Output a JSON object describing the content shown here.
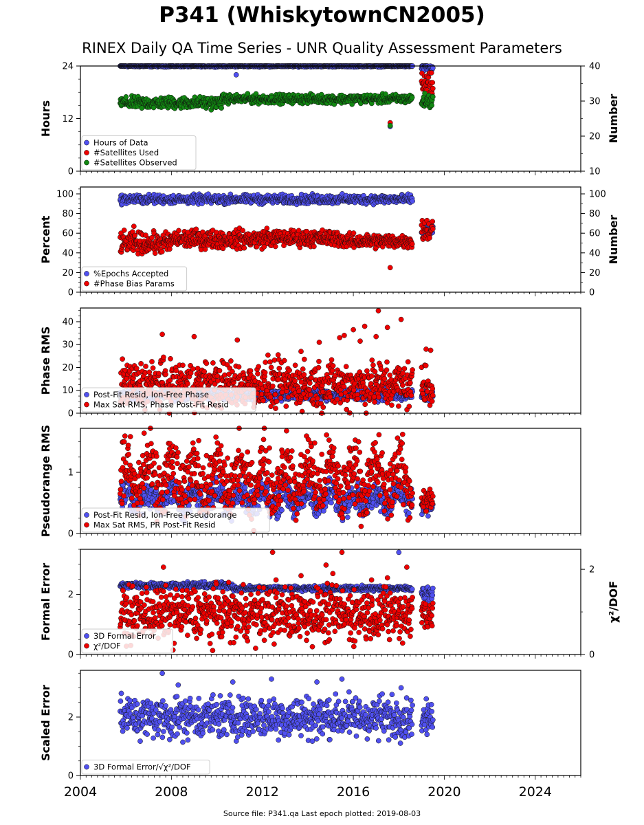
{
  "title": "P341 (WhiskytownCN2005)",
  "subtitle": "RINEX Daily QA Time Series - UNR Quality Assessment Parameters",
  "footer": "Source file: P341.qa Last epoch plotted: 2019-08-03",
  "colors": {
    "blue": "#5050f0",
    "red": "#ee0000",
    "green": "#118811",
    "edge": "#111111"
  },
  "chart_data": [
    {
      "type": "scatter",
      "ylabel": "Hours",
      "y2label": "Number",
      "ylim": [
        0,
        24
      ],
      "yticks": [
        0,
        12,
        24
      ],
      "y2lim": [
        10,
        40
      ],
      "y2ticks": [
        10,
        20,
        30,
        40
      ],
      "legend": "lower-left",
      "series": [
        {
          "name": "Hours of Data",
          "color": "blue",
          "axis": "left",
          "segments": [
            {
              "x0": 2005.75,
              "x1": 2018.6,
              "base": 24.0,
              "noise": 0.1
            },
            {
              "x0": 2019.0,
              "x1": 2019.5,
              "base": 23.6,
              "noise": 0.4
            }
          ],
          "extra": [
            [
              2010.85,
              22.0
            ],
            [
              2017.62,
              10.2
            ]
          ]
        },
        {
          "name": "#Satellites Used",
          "color": "red",
          "axis": "right",
          "segments": [
            {
              "x0": 2019.0,
              "x1": 2019.5,
              "base": 34.5,
              "noise": 1.6
            }
          ],
          "extra": [
            [
              2017.62,
              23.8
            ],
            [
              2009.7,
              30.0
            ]
          ]
        },
        {
          "name": "#Satellites Observed",
          "color": "green",
          "axis": "right",
          "segments": [
            {
              "x0": 2005.75,
              "x1": 2010.2,
              "base": 29.5,
              "noise": 0.8
            },
            {
              "x0": 2010.2,
              "x1": 2018.6,
              "base": 30.6,
              "noise": 0.6
            },
            {
              "x0": 2019.0,
              "x1": 2019.5,
              "base": 30.0,
              "noise": 1.0
            }
          ],
          "extra": [
            [
              2017.62,
              23.0
            ],
            [
              2006.7,
              28.0
            ]
          ]
        }
      ]
    },
    {
      "type": "scatter",
      "ylabel": "Percent",
      "y2label": "Number",
      "ylim": [
        0,
        107
      ],
      "yticks": [
        0,
        20,
        40,
        60,
        80,
        100
      ],
      "y2lim": [
        0,
        107
      ],
      "y2ticks": [
        0,
        20,
        40,
        60,
        80,
        100
      ],
      "legend": "lower-left",
      "series": [
        {
          "name": "%Epochs Accepted",
          "color": "blue",
          "axis": "left",
          "segments": [
            {
              "x0": 2005.75,
              "x1": 2018.6,
              "base": 94.5,
              "noise": 2.2
            },
            {
              "x0": 2019.0,
              "x1": 2019.5,
              "base": 64.0,
              "noise": 4.0
            }
          ],
          "extra": []
        },
        {
          "name": "#Phase Bias Params",
          "color": "red",
          "axis": "right",
          "segments": [
            {
              "x0": 2005.75,
              "x1": 2008.0,
              "base": 50.0,
              "noise": 5.0
            },
            {
              "x0": 2008.0,
              "x1": 2012.0,
              "base": 54.0,
              "noise": 4.5
            },
            {
              "x0": 2012.0,
              "x1": 2015.5,
              "base": 55.0,
              "noise": 4.0
            },
            {
              "x0": 2015.5,
              "x1": 2018.6,
              "base": 52.0,
              "noise": 3.5
            },
            {
              "x0": 2019.0,
              "x1": 2019.5,
              "base": 63.0,
              "noise": 6.0
            }
          ],
          "extra": [
            [
              2017.62,
              25.0
            ],
            [
              2006.35,
              67.0
            ],
            [
              2012.2,
              65.0
            ]
          ]
        }
      ]
    },
    {
      "type": "scatter",
      "ylabel": "Phase RMS",
      "ylim": [
        0,
        46
      ],
      "yticks": [
        0,
        10,
        20,
        30,
        40
      ],
      "legend": "lower-left",
      "series": [
        {
          "name": "Post-Fit Resid, Ion-Free Phase",
          "color": "blue",
          "axis": "left",
          "segments": [
            {
              "x0": 2005.75,
              "x1": 2018.6,
              "base": 8.0,
              "noise": 1.2
            },
            {
              "x0": 2019.0,
              "x1": 2019.5,
              "base": 7.5,
              "noise": 1.0
            }
          ],
          "extra": []
        },
        {
          "name": "Max Sat RMS, Phase Post-Fit Resid",
          "color": "red",
          "axis": "left",
          "segments": [
            {
              "x0": 2005.75,
              "x1": 2018.6,
              "base": 12.5,
              "noise": 5.0
            },
            {
              "x0": 2019.0,
              "x1": 2019.5,
              "base": 12.0,
              "noise": 5.0
            }
          ],
          "extra": [
            [
              2007.6,
              34.5
            ],
            [
              2009.0,
              33.5
            ],
            [
              2010.9,
              32.0
            ],
            [
              2014.5,
              31.0
            ],
            [
              2015.4,
              33.0
            ],
            [
              2015.6,
              34.0
            ],
            [
              2016.0,
              36.5
            ],
            [
              2016.5,
              38.0
            ],
            [
              2017.1,
              44.8
            ],
            [
              2017.5,
              37.5
            ],
            [
              2018.1,
              41.0
            ],
            [
              2016.3,
              31.5
            ],
            [
              2019.2,
              28.0
            ],
            [
              2019.4,
              27.5
            ],
            [
              2017.0,
              33.5
            ],
            [
              2013.7,
              27.0
            ]
          ]
        }
      ]
    },
    {
      "type": "scatter",
      "ylabel": "Pseudorange RMS",
      "ylim": [
        0,
        1.72
      ],
      "yticks": [
        0,
        1
      ],
      "legend": "lower-left",
      "series": [
        {
          "name": "Post-Fit Resid, Ion-Free Pseudorange",
          "color": "blue",
          "axis": "left",
          "segments": [
            {
              "x0": 2005.75,
              "x1": 2018.6,
              "base": 0.58,
              "noise": 0.12,
              "seasonal": 0.12
            },
            {
              "x0": 2019.0,
              "x1": 2019.5,
              "base": 0.45,
              "noise": 0.06
            }
          ],
          "extra": []
        },
        {
          "name": "Max Sat RMS, PR Post-Fit Resid",
          "color": "red",
          "axis": "left",
          "segments": [
            {
              "x0": 2005.75,
              "x1": 2018.6,
              "base": 0.9,
              "noise": 0.25,
              "seasonal": 0.25
            },
            {
              "x0": 2019.0,
              "x1": 2019.5,
              "base": 0.55,
              "noise": 0.1
            }
          ],
          "extra": [
            [
              2006.8,
              1.64
            ],
            [
              2009.2,
              1.52
            ],
            [
              2014.3,
              1.48
            ]
          ]
        }
      ]
    },
    {
      "type": "scatter",
      "ylabel": "Formal Error",
      "y2label": "χ²/DOF",
      "ylim": [
        0,
        3.5
      ],
      "yticks": [
        0,
        2
      ],
      "y2lim": [
        0,
        2.47
      ],
      "y2ticks": [
        0,
        2
      ],
      "legend": "lower-left",
      "series": [
        {
          "name": "3D Formal Error",
          "color": "blue",
          "axis": "left",
          "segments": [
            {
              "x0": 2005.75,
              "x1": 2010.7,
              "base": 2.3,
              "noise": 0.05
            },
            {
              "x0": 2010.7,
              "x1": 2018.6,
              "base": 2.2,
              "noise": 0.04
            },
            {
              "x0": 2019.0,
              "x1": 2019.5,
              "base": 2.05,
              "noise": 0.1
            }
          ],
          "extra": [
            [
              2018.0,
              3.4
            ]
          ]
        },
        {
          "name": "χ²/DOF",
          "color": "red",
          "axis": "right",
          "segments": [
            {
              "x0": 2005.75,
              "x1": 2018.6,
              "base": 0.95,
              "noise": 0.3
            },
            {
              "x0": 2019.0,
              "x1": 2019.5,
              "base": 1.0,
              "noise": 0.25
            }
          ],
          "extra": [
            [
              2007.65,
              2.05
            ],
            [
              2012.45,
              2.4
            ],
            [
              2012.6,
              1.75
            ],
            [
              2013.7,
              1.85
            ],
            [
              2014.8,
              2.1
            ],
            [
              2015.5,
              2.4
            ],
            [
              2015.1,
              1.9
            ],
            [
              2017.5,
              1.8
            ],
            [
              2016.8,
              1.75
            ],
            [
              2018.35,
              2.05
            ]
          ]
        }
      ]
    },
    {
      "type": "scatter",
      "ylabel": "Scaled Error",
      "ylim": [
        0,
        3.6
      ],
      "yticks": [
        0,
        2
      ],
      "legend": "lower-left",
      "series": [
        {
          "name": "3D Formal Error/√χ²/DOF",
          "color": "blue",
          "axis": "left",
          "segments": [
            {
              "x0": 2005.75,
              "x1": 2018.6,
              "base": 2.0,
              "noise": 0.35
            },
            {
              "x0": 2019.0,
              "x1": 2019.5,
              "base": 1.95,
              "noise": 0.25
            }
          ],
          "extra": [
            [
              2007.6,
              3.5
            ],
            [
              2012.4,
              3.3
            ],
            [
              2015.5,
              3.3
            ],
            [
              2010.7,
              3.2
            ],
            [
              2014.4,
              3.2
            ],
            [
              2008.3,
              3.1
            ],
            [
              2018.1,
              3.0
            ]
          ]
        }
      ]
    }
  ],
  "xaxis": {
    "xlim": [
      2004,
      2026
    ],
    "ticks": [
      "2004",
      "2008",
      "2012",
      "2016",
      "2020",
      "2024"
    ]
  }
}
